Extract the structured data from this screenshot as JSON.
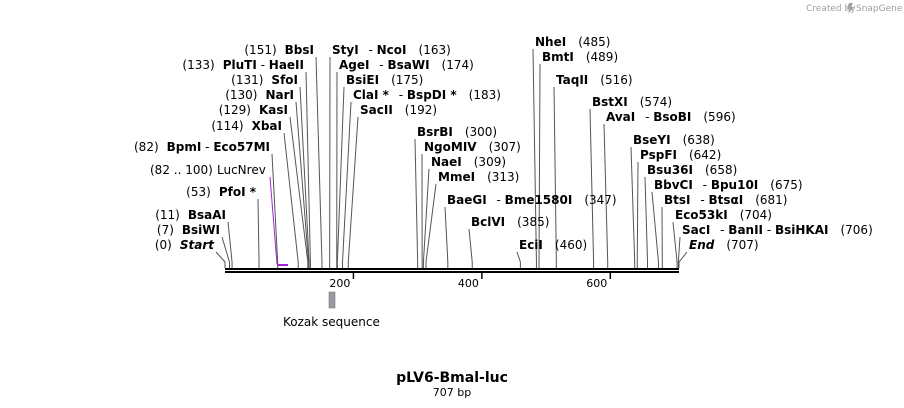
{
  "header": {
    "credit_text": "Created by",
    "brand": "SnapGene"
  },
  "map": {
    "name": "pLV6-Bmal-luc",
    "length_label": "707 bp",
    "length": 707,
    "colors": {
      "feature": "#9a9aa2",
      "primer": "#a028d0",
      "backbone": "#000000"
    },
    "ticks": [
      {
        "value": 200,
        "label": "200"
      },
      {
        "value": 400,
        "label": "400"
      },
      {
        "value": 600,
        "label": "600"
      }
    ],
    "features": [
      {
        "name": "Kozak sequence",
        "start": 174,
        "end": 184
      }
    ],
    "primers": [
      {
        "name": "LucNrev",
        "pos_label": "(82 .. 100)",
        "start": 82,
        "end": 100
      }
    ],
    "sites": [
      {
        "name": "Start",
        "pos": 0,
        "pos_label": "(0)",
        "special": true
      },
      {
        "name": "BsiWI",
        "pos": 7,
        "pos_label": "(7)"
      },
      {
        "name": "BsaAI",
        "pos": 11,
        "pos_label": "(11)"
      },
      {
        "name": "PfoI *",
        "pos": 53,
        "pos_label": "(53)"
      },
      {
        "name": "BpmI",
        "name2": "Eco57MI",
        "pos": 82,
        "pos_label": "(82)"
      },
      {
        "name": "XbaI",
        "pos": 114,
        "pos_label": "(114)"
      },
      {
        "name": "KasI",
        "pos": 129,
        "pos_label": "(129)"
      },
      {
        "name": "NarI",
        "pos": 130,
        "pos_label": "(130)"
      },
      {
        "name": "SfoI",
        "pos": 131,
        "pos_label": "(131)"
      },
      {
        "name": "PluTI",
        "name2": "HaeII",
        "pos": 133,
        "pos_label": "(133)"
      },
      {
        "name": "BbsI",
        "pos": 151,
        "pos_label": "(151)"
      },
      {
        "name": "StyI",
        "name2": "NcoI",
        "pos": 163,
        "pos_label": "(163)"
      },
      {
        "name": "AgeI",
        "name2": "BsaWI",
        "pos": 174,
        "pos_label": "(174)"
      },
      {
        "name": "BsiEI",
        "pos": 175,
        "pos_label": "(175)"
      },
      {
        "name": "ClaI *",
        "name2": "BspDI *",
        "pos": 183,
        "pos_label": "(183)"
      },
      {
        "name": "SacII",
        "pos": 192,
        "pos_label": "(192)"
      },
      {
        "name": "BsrBI",
        "pos": 300,
        "pos_label": "(300)"
      },
      {
        "name": "NgoMIV",
        "pos": 307,
        "pos_label": "(307)"
      },
      {
        "name": "NaeI",
        "pos": 309,
        "pos_label": "(309)"
      },
      {
        "name": "MmeI",
        "pos": 313,
        "pos_label": "(313)"
      },
      {
        "name": "BaeGI",
        "name2": "Bme1580I",
        "pos": 347,
        "pos_label": "(347)"
      },
      {
        "name": "BclVI",
        "pos": 385,
        "pos_label": "(385)"
      },
      {
        "name": "EciI",
        "pos": 460,
        "pos_label": "(460)"
      },
      {
        "name": "NheI",
        "pos": 485,
        "pos_label": "(485)"
      },
      {
        "name": "BmtI",
        "pos": 489,
        "pos_label": "(489)"
      },
      {
        "name": "TaqII",
        "pos": 516,
        "pos_label": "(516)"
      },
      {
        "name": "BstXI",
        "pos": 574,
        "pos_label": "(574)"
      },
      {
        "name": "AvaI",
        "name2": "BsoBI",
        "pos": 596,
        "pos_label": "(596)"
      },
      {
        "name": "BseYI",
        "pos": 638,
        "pos_label": "(638)"
      },
      {
        "name": "PspFI",
        "pos": 642,
        "pos_label": "(642)"
      },
      {
        "name": "Bsu36I",
        "pos": 658,
        "pos_label": "(658)"
      },
      {
        "name": "BbvCI",
        "name2": "Bpu10I",
        "pos": 675,
        "pos_label": "(675)"
      },
      {
        "name": "BtsI",
        "name2": "BtsαI",
        "pos": 681,
        "pos_label": "(681)"
      },
      {
        "name": "Eco53kI",
        "pos": 704,
        "pos_label": "(704)"
      },
      {
        "name": "SacI",
        "name2": "BanII",
        "name3": "BsiHKAI",
        "pos": 706,
        "pos_label": "(706)"
      },
      {
        "name": "End",
        "pos": 707,
        "pos_label": "(707)",
        "special": true
      }
    ]
  }
}
